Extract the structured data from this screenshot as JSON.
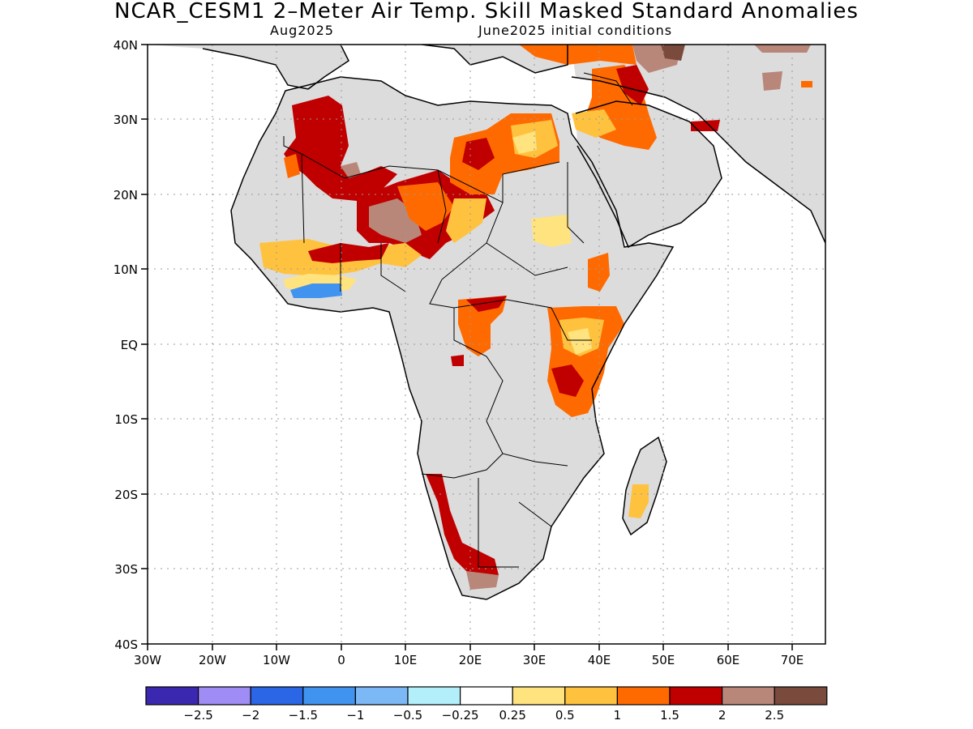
{
  "title": "NCAR_CESM1 2–Meter Air Temp. Skill Masked Standard Anomalies",
  "subtitle_left": "Aug2025",
  "subtitle_right": "June2025 initial conditions",
  "axes": {
    "lat_labels": [
      "40N",
      "30N",
      "20N",
      "10N",
      "EQ",
      "10S",
      "20S",
      "30S",
      "40S"
    ],
    "lon_labels": [
      "30W",
      "20W",
      "10W",
      "0",
      "10E",
      "20E",
      "30E",
      "40E",
      "50E",
      "60E",
      "70E"
    ]
  },
  "colorbar": {
    "colors": [
      "#3b28b0",
      "#9f8cf5",
      "#2a66e6",
      "#4193f0",
      "#7cb7f6",
      "#b3effa",
      "#ffffff",
      "#ffe37f",
      "#ffc23f",
      "#ff6a00",
      "#c00000",
      "#b8877a",
      "#7a4b3c"
    ],
    "labels": [
      "-2.5",
      "-2",
      "-1.5",
      "-1",
      "-0.5",
      "-0.25",
      "0.25",
      "0.5",
      "1",
      "1.5",
      "2",
      "2.5"
    ]
  },
  "map_colors": {
    "land_masked": "#dcdcdc",
    "ocean": "#ffffff",
    "coast": "#000000"
  }
}
